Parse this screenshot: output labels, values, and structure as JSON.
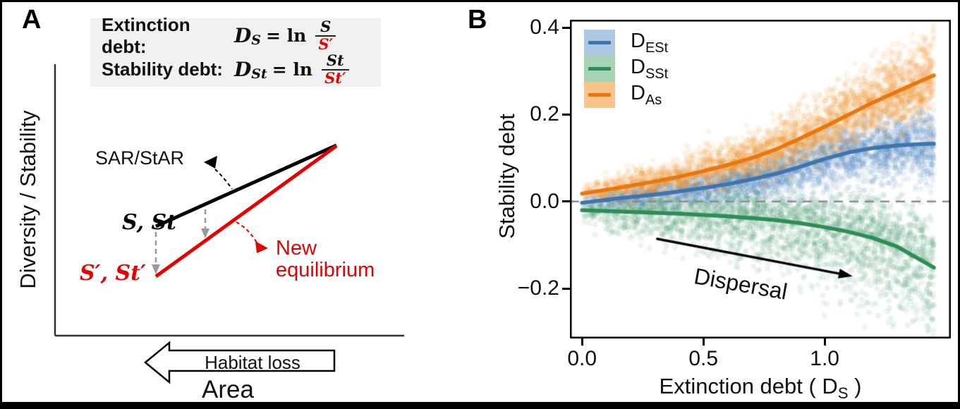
{
  "panel_a": {
    "label": "A",
    "y_axis_label": "Diversity / Stability",
    "x_axis_label": "Area",
    "formula_box": {
      "rows": [
        {
          "label": "Extinction debt:",
          "d": "D",
          "d_sub": "S",
          "eq": "= ln",
          "num": "S",
          "den": "S′"
        },
        {
          "label": "Stability debt:",
          "d": "D",
          "d_sub": "St",
          "eq": "= ln",
          "num": "St",
          "den": "St′"
        }
      ]
    },
    "sar_label": "SAR/StAR",
    "s_st": "S, St",
    "s_st_prime": "S′, St′",
    "new_eq_line1": "New",
    "new_eq_line2": "equilibrium",
    "habitat_loss": "Habitat loss",
    "accent_red": "#e80000",
    "arrow_gray": "#999999"
  },
  "panel_b": {
    "label": "B"
  },
  "chart_data": {
    "type": "scatter",
    "xlabel_prefix": "Extinction debt ( D",
    "xlabel_sub": "S",
    "xlabel_suffix": " )",
    "ylabel": "Stability debt",
    "xlim": [
      -0.05,
      1.52
    ],
    "ylim": [
      -0.315,
      0.418
    ],
    "xticks": [
      {
        "v": 0.0,
        "label": "0.0"
      },
      {
        "v": 0.5,
        "label": "0.5"
      },
      {
        "v": 1.0,
        "label": "1.0"
      }
    ],
    "yticks": [
      {
        "v": 0.4,
        "label": "0.4"
      },
      {
        "v": 0.2,
        "label": "0.2"
      },
      {
        "v": 0.0,
        "label": "0.0"
      },
      {
        "v": -0.2,
        "label": "−0.2"
      }
    ],
    "zero_line": {
      "y": 0.0,
      "color": "#8c8c8c"
    },
    "grid": false,
    "legend_position": "top-left",
    "scatter_seed": 12,
    "series": [
      {
        "name": "D_ESt",
        "label_main": "D",
        "label_sub": "ESt",
        "line_color": "#3e75af",
        "band_color": "#aec7e3",
        "point_rgba": "rgba(70,125,185,0.10)",
        "n_points": 3000,
        "x_max": 1.45,
        "x_pow": 0.72,
        "sd0": 0.009,
        "sd_slope": 0.02,
        "skew_down": 1.15,
        "trend": [
          [
            0,
            -0.003
          ],
          [
            0.1,
            0.004
          ],
          [
            0.2,
            0.01
          ],
          [
            0.3,
            0.016
          ],
          [
            0.4,
            0.023
          ],
          [
            0.5,
            0.031
          ],
          [
            0.6,
            0.04
          ],
          [
            0.7,
            0.051
          ],
          [
            0.8,
            0.064
          ],
          [
            0.9,
            0.08
          ],
          [
            1.0,
            0.098
          ],
          [
            1.1,
            0.113
          ],
          [
            1.2,
            0.123
          ],
          [
            1.3,
            0.129
          ],
          [
            1.4,
            0.132
          ],
          [
            1.45,
            0.133
          ]
        ]
      },
      {
        "name": "D_SSt",
        "label_main": "D",
        "label_sub": "SSt",
        "line_color": "#2d8d55",
        "band_color": "#a8d3b4",
        "point_rgba": "rgba(55,150,95,0.10)",
        "n_points": 2600,
        "x_max": 1.45,
        "x_pow": 0.72,
        "sd0": 0.01,
        "sd_slope": 0.03,
        "skew_down": 1.7,
        "trend": [
          [
            0,
            -0.02
          ],
          [
            0.1,
            -0.022
          ],
          [
            0.2,
            -0.024
          ],
          [
            0.3,
            -0.026
          ],
          [
            0.4,
            -0.028
          ],
          [
            0.5,
            -0.031
          ],
          [
            0.6,
            -0.034
          ],
          [
            0.7,
            -0.038
          ],
          [
            0.8,
            -0.043
          ],
          [
            0.9,
            -0.05
          ],
          [
            1.0,
            -0.059
          ],
          [
            1.1,
            -0.07
          ],
          [
            1.2,
            -0.084
          ],
          [
            1.3,
            -0.104
          ],
          [
            1.4,
            -0.136
          ],
          [
            1.45,
            -0.152
          ]
        ]
      },
      {
        "name": "D_As",
        "label_main": "D",
        "label_sub": "As",
        "line_color": "#e8770e",
        "band_color": "#f7c48c",
        "point_rgba": "rgba(235,145,50,0.11)",
        "n_points": 3200,
        "x_max": 1.45,
        "x_pow": 0.72,
        "sd0": 0.011,
        "sd_slope": 0.026,
        "skew_down": 0.9,
        "trend": [
          [
            0,
            0.018
          ],
          [
            0.1,
            0.027
          ],
          [
            0.2,
            0.036
          ],
          [
            0.3,
            0.046
          ],
          [
            0.4,
            0.057
          ],
          [
            0.5,
            0.07
          ],
          [
            0.6,
            0.084
          ],
          [
            0.7,
            0.1
          ],
          [
            0.8,
            0.12
          ],
          [
            0.9,
            0.145
          ],
          [
            1.0,
            0.172
          ],
          [
            1.1,
            0.2
          ],
          [
            1.2,
            0.228
          ],
          [
            1.3,
            0.253
          ],
          [
            1.4,
            0.278
          ],
          [
            1.45,
            0.29
          ]
        ]
      }
    ],
    "annotation": {
      "text": "Dispersal",
      "x1": 0.31,
      "y1": -0.086,
      "x2": 1.09,
      "y2": -0.169,
      "text_x": 0.655,
      "text_y": -0.19,
      "rotation_deg": 10
    }
  }
}
